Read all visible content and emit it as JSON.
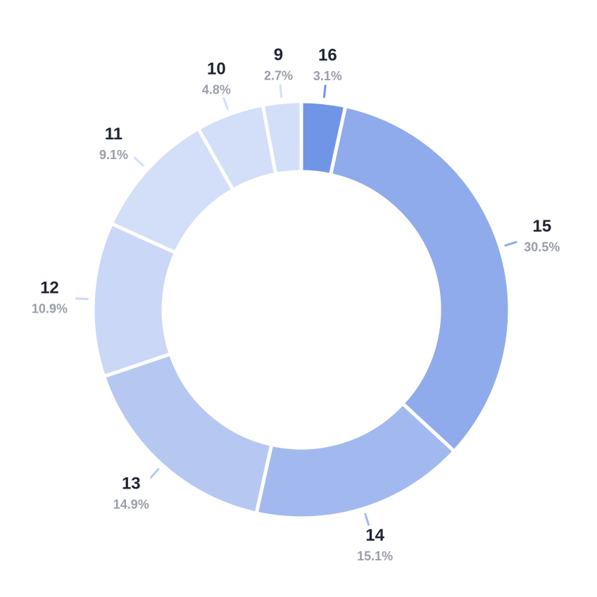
{
  "chart_data": {
    "type": "pie",
    "variant": "donut",
    "title": "",
    "slices": [
      {
        "label": "16",
        "value": 3.1,
        "percent_label": "3.1%",
        "color": "#7095e6"
      },
      {
        "label": "15",
        "value": 30.5,
        "percent_label": "30.5%",
        "color": "#8fabeb"
      },
      {
        "label": "14",
        "value": 15.1,
        "percent_label": "15.1%",
        "color": "#a2b9ef"
      },
      {
        "label": "13",
        "value": 14.9,
        "percent_label": "14.9%",
        "color": "#b6c8f2"
      },
      {
        "label": "12",
        "value": 10.9,
        "percent_label": "10.9%",
        "color": "#cad7f6"
      },
      {
        "label": "11",
        "value": 9.1,
        "percent_label": "9.1%",
        "color": "#d3def8"
      },
      {
        "label": "10",
        "value": 4.8,
        "percent_label": "4.8%",
        "color": "#d3def8"
      },
      {
        "label": "9",
        "value": 2.7,
        "percent_label": "2.7%",
        "color": "#d3def8"
      }
    ],
    "label_name_color": "#1e2430",
    "label_percent_color": "#9a9ea8",
    "legend": "none"
  }
}
